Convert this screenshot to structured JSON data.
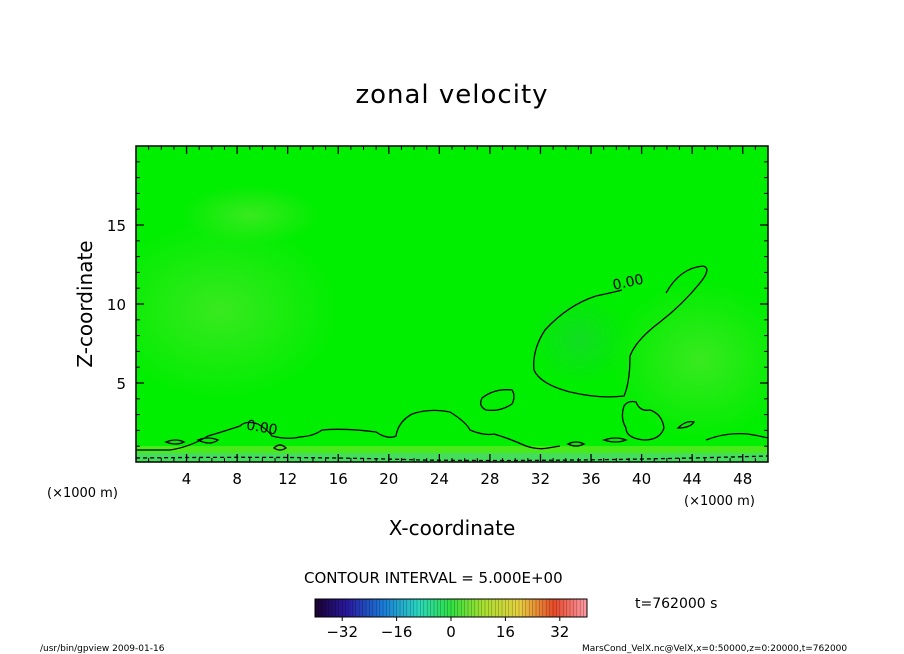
{
  "footer": {
    "left": "/usr/bin/gpview  2009-01-16",
    "right": "MarsCond_VelX.nc@VelX,x=0:50000,z=0:20000,t=762000"
  },
  "contour_interval": "CONTOUR INTERVAL = 5.000E+00",
  "time_label": "t=762000 s",
  "colors": {
    "field": "#00ee00",
    "frame": "#000000"
  },
  "chart_data": {
    "type": "heatmap",
    "title": "zonal velocity",
    "xlabel": "X-coordinate",
    "ylabel": "Z-coordinate",
    "x_unit": "(×1000 m)",
    "y_unit": "(×1000 m)",
    "xlim": [
      0,
      50
    ],
    "ylim": [
      0,
      20
    ],
    "x_ticks": [
      4,
      8,
      12,
      16,
      20,
      24,
      28,
      32,
      36,
      40,
      44,
      48
    ],
    "y_ticks": [
      5,
      10,
      15
    ],
    "contour_labels": [
      {
        "text": "0.00",
        "x": 39.0,
        "z": 11.1
      },
      {
        "text": "0.00",
        "x": 9.9,
        "z": 1.9
      }
    ],
    "colorbar": {
      "ticks": [
        -32,
        -16,
        0,
        16,
        32
      ],
      "range": [
        -40,
        40
      ]
    }
  }
}
